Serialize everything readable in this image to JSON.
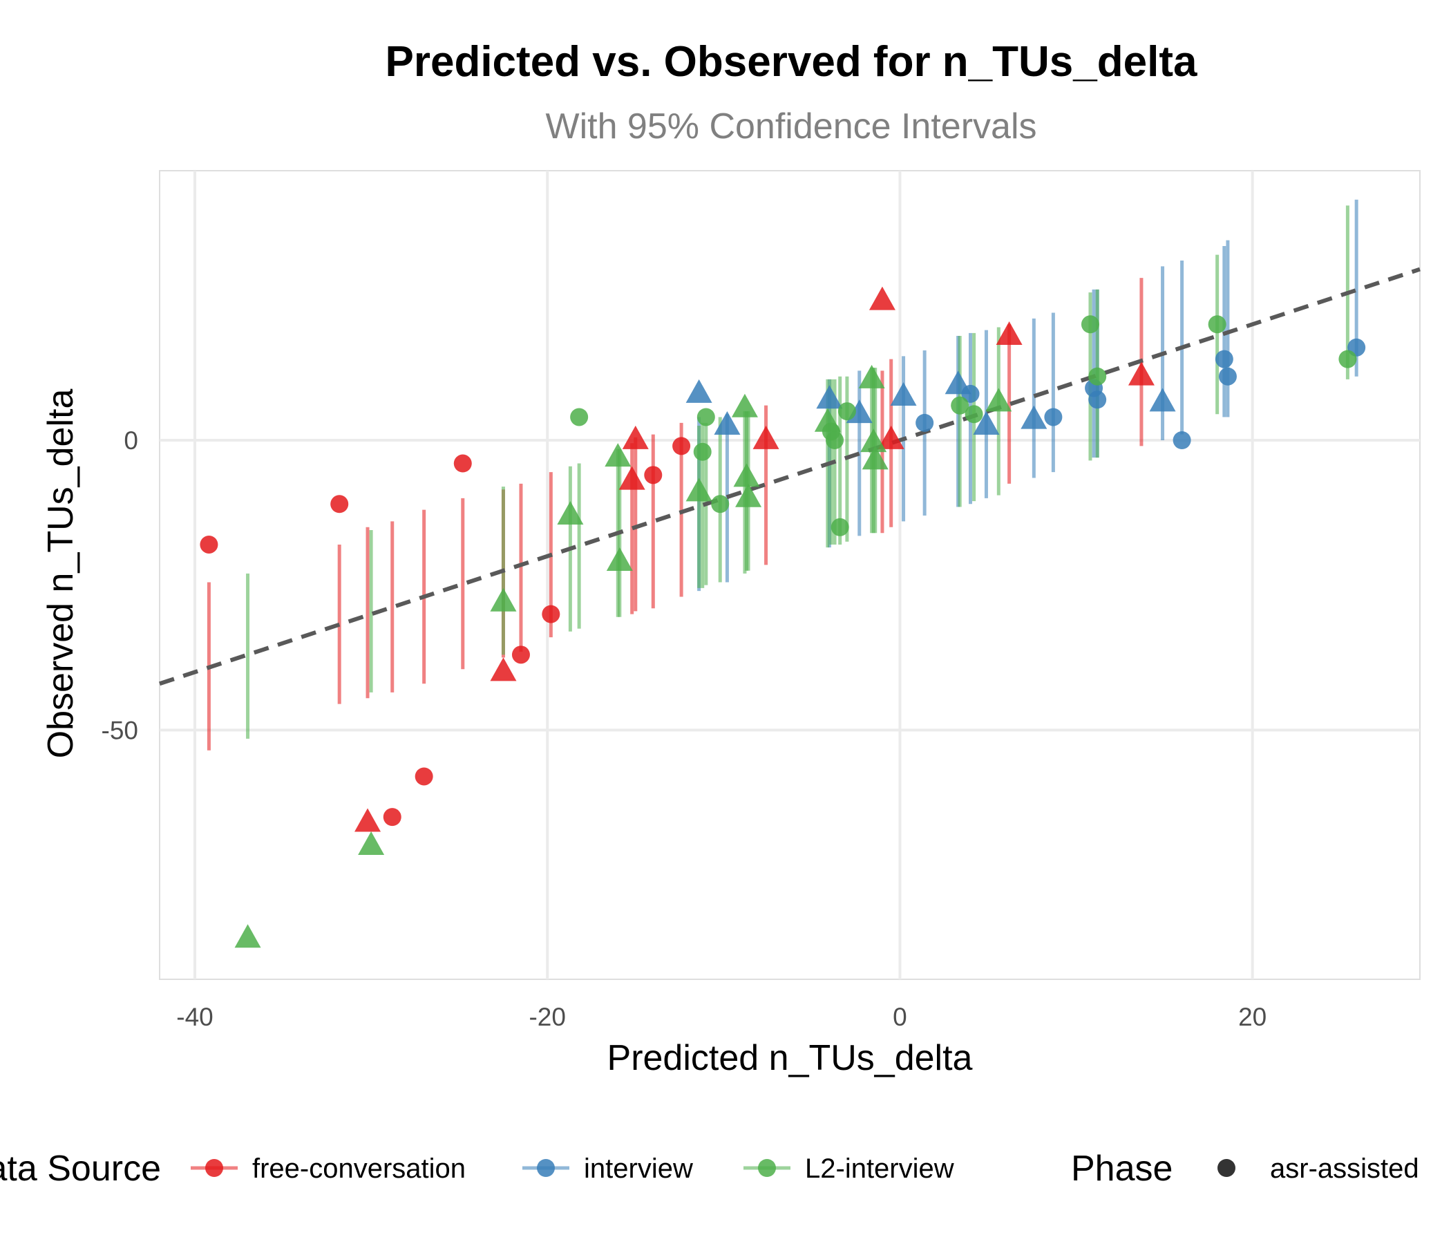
{
  "chart_data": {
    "type": "scatter",
    "title": "Predicted vs. Observed for n_TUs_delta",
    "subtitle": "With 95% Confidence Intervals",
    "xlabel": "Predicted n_TUs_delta",
    "ylabel": "Observed n_TUs_delta",
    "xlim": [
      -42,
      29.5
    ],
    "ylim": [
      -93,
      46.5
    ],
    "x_ticks": [
      -40,
      -20,
      0,
      20
    ],
    "y_ticks": [
      -50,
      0
    ],
    "grid": true,
    "legend_position": "bottom",
    "reference_line": {
      "type": "identity",
      "style": "dashed",
      "color": "#595959"
    },
    "legend": {
      "color_title": "Data Source",
      "shape_title": "Phase",
      "color_entries": [
        {
          "name": "free-conversation",
          "color": "#e41a1c"
        },
        {
          "name": "interview",
          "color": "#377eb8"
        },
        {
          "name": "L2-interview",
          "color": "#4daf4a"
        }
      ],
      "shape_entries": [
        {
          "name": "asr-assisted",
          "shape": "circle"
        }
      ]
    },
    "series": [
      {
        "name": "free-conversation",
        "color": "#e41a1c",
        "points": [
          {
            "x": -39.2,
            "y": -18,
            "lo": -53.5,
            "hi": -24.5,
            "shape": "circle"
          },
          {
            "x": -31.8,
            "y": -11,
            "lo": -45.5,
            "hi": -18,
            "shape": "circle"
          },
          {
            "x": -30.2,
            "y": -66,
            "lo": -44.5,
            "hi": -15,
            "shape": "triangle"
          },
          {
            "x": -28.8,
            "y": -65,
            "lo": -43.5,
            "hi": -14,
            "shape": "circle"
          },
          {
            "x": -27.0,
            "y": -58,
            "lo": -42,
            "hi": -12,
            "shape": "circle"
          },
          {
            "x": -24.8,
            "y": -4,
            "lo": -39.5,
            "hi": -10,
            "shape": "circle"
          },
          {
            "x": -22.5,
            "y": -40,
            "lo": -37.5,
            "hi": -8.5,
            "shape": "triangle"
          },
          {
            "x": -21.5,
            "y": -37,
            "lo": -36.5,
            "hi": -7.5,
            "shape": "circle"
          },
          {
            "x": -19.8,
            "y": -30,
            "lo": -34,
            "hi": -5.5,
            "shape": "circle"
          },
          {
            "x": -15.2,
            "y": -7,
            "lo": -30,
            "hi": -0.5,
            "shape": "triangle"
          },
          {
            "x": -15.0,
            "y": 0,
            "lo": -29.5,
            "hi": 0.5,
            "shape": "triangle"
          },
          {
            "x": -14.0,
            "y": -6,
            "lo": -29,
            "hi": 1,
            "shape": "circle"
          },
          {
            "x": -12.4,
            "y": -1,
            "lo": -27,
            "hi": 3,
            "shape": "circle"
          },
          {
            "x": -7.6,
            "y": 0,
            "lo": -21.5,
            "hi": 6,
            "shape": "triangle"
          },
          {
            "x": -1.0,
            "y": 24,
            "lo": -16,
            "hi": 12,
            "shape": "triangle"
          },
          {
            "x": -0.5,
            "y": 0,
            "lo": -15,
            "hi": 14,
            "shape": "triangle"
          },
          {
            "x": 6.2,
            "y": 18,
            "lo": -7.5,
            "hi": 20,
            "shape": "triangle"
          },
          {
            "x": 13.7,
            "y": 11,
            "lo": -1,
            "hi": 28,
            "shape": "triangle"
          }
        ]
      },
      {
        "name": "interview",
        "color": "#377eb8",
        "points": [
          {
            "x": -11.4,
            "y": 8,
            "lo": -26,
            "hi": 4,
            "shape": "triangle"
          },
          {
            "x": -9.8,
            "y": 2.5,
            "lo": -24.5,
            "hi": 4.5,
            "shape": "triangle"
          },
          {
            "x": -4.0,
            "y": 7,
            "lo": -18.5,
            "hi": 10.5,
            "shape": "triangle"
          },
          {
            "x": -2.3,
            "y": 4.5,
            "lo": -16.5,
            "hi": 12,
            "shape": "triangle"
          },
          {
            "x": 0.2,
            "y": 7.5,
            "lo": -14,
            "hi": 14.5,
            "shape": "triangle"
          },
          {
            "x": 1.4,
            "y": 3,
            "lo": -13,
            "hi": 15.5,
            "shape": "circle"
          },
          {
            "x": 3.3,
            "y": 9.5,
            "lo": -11.5,
            "hi": 18,
            "shape": "triangle"
          },
          {
            "x": 4.0,
            "y": 8,
            "lo": -11,
            "hi": 18.5,
            "shape": "circle"
          },
          {
            "x": 4.9,
            "y": 2.5,
            "lo": -10,
            "hi": 19,
            "shape": "triangle"
          },
          {
            "x": 7.6,
            "y": 3.5,
            "lo": -6.5,
            "hi": 21,
            "shape": "triangle"
          },
          {
            "x": 8.7,
            "y": 4,
            "lo": -5.5,
            "hi": 22,
            "shape": "circle"
          },
          {
            "x": 11.0,
            "y": 9,
            "lo": -3,
            "hi": 26,
            "shape": "circle"
          },
          {
            "x": 11.2,
            "y": 7,
            "lo": -3,
            "hi": 26,
            "shape": "circle"
          },
          {
            "x": 14.9,
            "y": 6.5,
            "lo": 0,
            "hi": 30,
            "shape": "triangle"
          },
          {
            "x": 16.0,
            "y": 0,
            "lo": 1,
            "hi": 31,
            "shape": "circle"
          },
          {
            "x": 18.4,
            "y": 14,
            "lo": 4,
            "hi": 33.5,
            "shape": "circle"
          },
          {
            "x": 18.6,
            "y": 11,
            "lo": 4,
            "hi": 34.5,
            "shape": "circle"
          },
          {
            "x": 25.9,
            "y": 16,
            "lo": 11,
            "hi": 41.5,
            "shape": "circle"
          }
        ]
      },
      {
        "name": "L2-interview",
        "color": "#4daf4a",
        "points": [
          {
            "x": -37.0,
            "y": -86,
            "lo": -51.5,
            "hi": -23,
            "shape": "triangle"
          },
          {
            "x": -30.0,
            "y": -70,
            "lo": -43.5,
            "hi": -15.5,
            "shape": "triangle"
          },
          {
            "x": -22.5,
            "y": -28,
            "lo": -37,
            "hi": -8,
            "shape": "triangle"
          },
          {
            "x": -18.7,
            "y": -13,
            "lo": -33,
            "hi": -4.5,
            "shape": "triangle"
          },
          {
            "x": -18.2,
            "y": 4,
            "lo": -32.5,
            "hi": -4,
            "shape": "circle"
          },
          {
            "x": -16.0,
            "y": -3,
            "lo": -30.5,
            "hi": -1.5,
            "shape": "triangle"
          },
          {
            "x": -15.9,
            "y": -21,
            "lo": -30.5,
            "hi": -1.5,
            "shape": "triangle"
          },
          {
            "x": -11.4,
            "y": -9,
            "lo": -25.5,
            "hi": 2.5,
            "shape": "triangle"
          },
          {
            "x": -11.2,
            "y": -2,
            "lo": -25.5,
            "hi": 3,
            "shape": "circle"
          },
          {
            "x": -11.0,
            "y": 4,
            "lo": -25,
            "hi": 3,
            "shape": "circle"
          },
          {
            "x": -10.2,
            "y": -11,
            "lo": -24.5,
            "hi": 4,
            "shape": "circle"
          },
          {
            "x": -8.8,
            "y": 5.5,
            "lo": -23,
            "hi": 5,
            "shape": "triangle"
          },
          {
            "x": -8.7,
            "y": -6.5,
            "lo": -22.5,
            "hi": 5,
            "shape": "triangle"
          },
          {
            "x": -8.6,
            "y": -10,
            "lo": -22.5,
            "hi": 5,
            "shape": "triangle"
          },
          {
            "x": -4.1,
            "y": 3,
            "lo": -18.5,
            "hi": 10.5,
            "shape": "triangle"
          },
          {
            "x": -3.9,
            "y": 1.5,
            "lo": -18,
            "hi": 10.5,
            "shape": "circle"
          },
          {
            "x": -3.7,
            "y": 0,
            "lo": -18,
            "hi": 10.5,
            "shape": "circle"
          },
          {
            "x": -3.4,
            "y": -15,
            "lo": -18,
            "hi": 11,
            "shape": "circle"
          },
          {
            "x": -3.0,
            "y": 5,
            "lo": -17.5,
            "hi": 11,
            "shape": "circle"
          },
          {
            "x": -1.6,
            "y": 10.5,
            "lo": -16,
            "hi": 12.5,
            "shape": "triangle"
          },
          {
            "x": -1.5,
            "y": -0.5,
            "lo": -16,
            "hi": 12.5,
            "shape": "triangle"
          },
          {
            "x": -1.4,
            "y": -3.5,
            "lo": -16,
            "hi": 12.5,
            "shape": "triangle"
          },
          {
            "x": 3.4,
            "y": 6,
            "lo": -11.5,
            "hi": 18,
            "shape": "circle"
          },
          {
            "x": 4.2,
            "y": 4.5,
            "lo": -10.5,
            "hi": 18.5,
            "shape": "circle"
          },
          {
            "x": 5.6,
            "y": 6.5,
            "lo": -9.5,
            "hi": 19.5,
            "shape": "triangle"
          },
          {
            "x": 10.8,
            "y": 20,
            "lo": -3.5,
            "hi": 25.5,
            "shape": "circle"
          },
          {
            "x": 11.2,
            "y": 11,
            "lo": -3,
            "hi": 26,
            "shape": "circle"
          },
          {
            "x": 18.0,
            "y": 20,
            "lo": 4.5,
            "hi": 32,
            "shape": "circle"
          },
          {
            "x": 25.4,
            "y": 14,
            "lo": 10.5,
            "hi": 40.5,
            "shape": "circle"
          }
        ]
      }
    ]
  }
}
